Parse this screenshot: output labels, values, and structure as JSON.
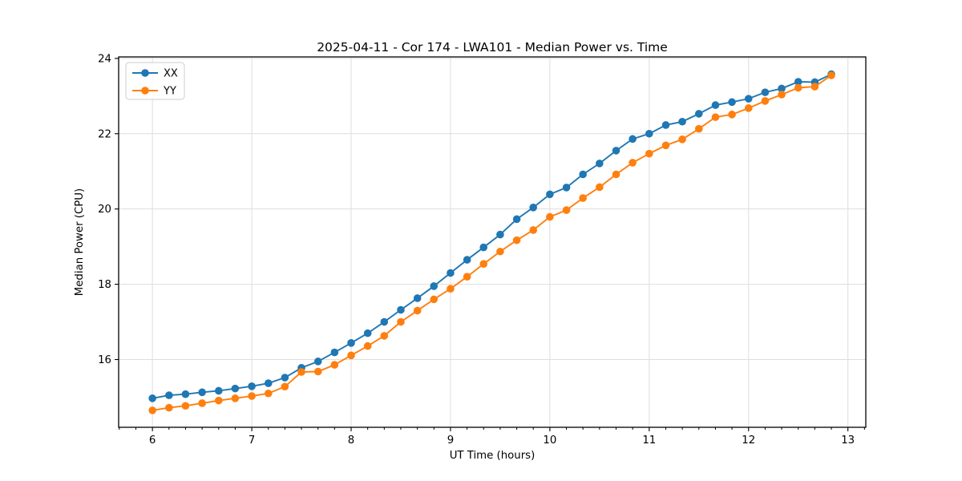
{
  "title": "2025-04-11 - Cor 174 - LWA101 - Median Power vs. Time",
  "chart_data": {
    "type": "line",
    "title": "2025-04-11 - Cor 174 - LWA101 - Median Power vs. Time",
    "xlabel": "UT Time (hours)",
    "ylabel": "Median Power (CPU)",
    "xlim": [
      5.66,
      13.18
    ],
    "ylim": [
      14.2,
      24.04
    ],
    "x_major_ticks": [
      6,
      7,
      8,
      9,
      10,
      11,
      12,
      13
    ],
    "x_tick_labels": [
      "6",
      "7",
      "8",
      "9",
      "10",
      "11",
      "12",
      "13"
    ],
    "x_minor_divisions": 6,
    "y_major_ticks": [
      16,
      18,
      20,
      22,
      24
    ],
    "y_tick_labels": [
      "16",
      "18",
      "20",
      "22",
      "24"
    ],
    "grid": true,
    "grid_color": "#dedede",
    "legend_position": "upper left",
    "x": [
      6.0,
      6.167,
      6.333,
      6.5,
      6.667,
      6.833,
      7.0,
      7.167,
      7.333,
      7.5,
      7.667,
      7.833,
      8.0,
      8.167,
      8.333,
      8.5,
      8.667,
      8.833,
      9.0,
      9.167,
      9.333,
      9.5,
      9.667,
      9.833,
      10.0,
      10.167,
      10.333,
      10.5,
      10.667,
      10.833,
      11.0,
      11.167,
      11.333,
      11.5,
      11.667,
      11.833,
      12.0,
      12.167,
      12.333,
      12.5,
      12.667,
      12.833
    ],
    "series": [
      {
        "name": "XX",
        "color": "#1f77b4",
        "values": [
          14.97,
          15.05,
          15.08,
          15.13,
          15.17,
          15.23,
          15.29,
          15.37,
          15.52,
          15.78,
          15.95,
          16.19,
          16.44,
          16.7,
          17.0,
          17.32,
          17.63,
          17.95,
          18.3,
          18.65,
          18.98,
          19.32,
          19.73,
          20.04,
          20.39,
          20.57,
          20.92,
          21.21,
          21.55,
          21.86,
          22.0,
          22.23,
          22.32,
          22.53,
          22.76,
          22.84,
          22.93,
          23.1,
          23.2,
          23.38,
          23.37,
          23.58
        ]
      },
      {
        "name": "YY",
        "color": "#ff7f0e",
        "values": [
          14.65,
          14.72,
          14.77,
          14.84,
          14.91,
          14.97,
          15.03,
          15.1,
          15.28,
          15.67,
          15.68,
          15.86,
          16.11,
          16.36,
          16.63,
          17.0,
          17.3,
          17.6,
          17.88,
          18.2,
          18.54,
          18.87,
          19.17,
          19.44,
          19.79,
          19.97,
          20.29,
          20.58,
          20.92,
          21.23,
          21.47,
          21.69,
          21.85,
          22.13,
          22.44,
          22.51,
          22.68,
          22.87,
          23.04,
          23.22,
          23.25,
          23.55
        ]
      }
    ]
  }
}
